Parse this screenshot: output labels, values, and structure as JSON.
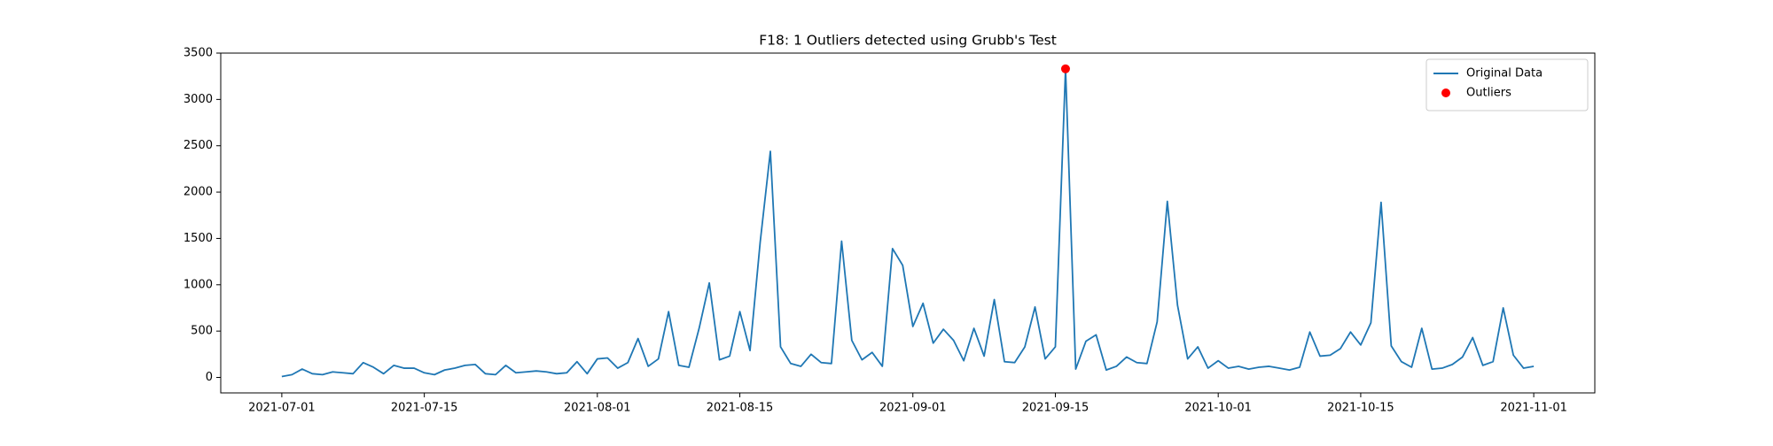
{
  "chart_data": {
    "type": "line",
    "title": "F18: 1 Outliers detected using Grubb's Test",
    "series": [
      {
        "name": "Original Data",
        "type": "line",
        "color": "#1f77b4",
        "x": [
          "2021-07-01",
          "2021-07-02",
          "2021-07-03",
          "2021-07-04",
          "2021-07-05",
          "2021-07-06",
          "2021-07-07",
          "2021-07-08",
          "2021-07-09",
          "2021-07-10",
          "2021-07-11",
          "2021-07-12",
          "2021-07-13",
          "2021-07-14",
          "2021-07-15",
          "2021-07-16",
          "2021-07-17",
          "2021-07-18",
          "2021-07-19",
          "2021-07-20",
          "2021-07-21",
          "2021-07-22",
          "2021-07-23",
          "2021-07-24",
          "2021-07-25",
          "2021-07-26",
          "2021-07-27",
          "2021-07-28",
          "2021-07-29",
          "2021-07-30",
          "2021-07-31",
          "2021-08-01",
          "2021-08-02",
          "2021-08-03",
          "2021-08-04",
          "2021-08-05",
          "2021-08-06",
          "2021-08-07",
          "2021-08-08",
          "2021-08-09",
          "2021-08-10",
          "2021-08-11",
          "2021-08-12",
          "2021-08-13",
          "2021-08-14",
          "2021-08-15",
          "2021-08-16",
          "2021-08-17",
          "2021-08-18",
          "2021-08-19",
          "2021-08-20",
          "2021-08-21",
          "2021-08-22",
          "2021-08-23",
          "2021-08-24",
          "2021-08-25",
          "2021-08-26",
          "2021-08-27",
          "2021-08-28",
          "2021-08-29",
          "2021-08-30",
          "2021-08-31",
          "2021-09-01",
          "2021-09-02",
          "2021-09-03",
          "2021-09-04",
          "2021-09-05",
          "2021-09-06",
          "2021-09-07",
          "2021-09-08",
          "2021-09-09",
          "2021-09-10",
          "2021-09-11",
          "2021-09-12",
          "2021-09-13",
          "2021-09-14",
          "2021-09-15",
          "2021-09-16",
          "2021-09-17",
          "2021-09-18",
          "2021-09-19",
          "2021-09-20",
          "2021-09-21",
          "2021-09-22",
          "2021-09-23",
          "2021-09-24",
          "2021-09-25",
          "2021-09-26",
          "2021-09-27",
          "2021-09-28",
          "2021-09-29",
          "2021-09-30",
          "2021-10-01",
          "2021-10-02",
          "2021-10-03",
          "2021-10-04",
          "2021-10-05",
          "2021-10-06",
          "2021-10-07",
          "2021-10-08",
          "2021-10-09",
          "2021-10-10",
          "2021-10-11",
          "2021-10-12",
          "2021-10-13",
          "2021-10-14",
          "2021-10-15",
          "2021-10-16",
          "2021-10-17",
          "2021-10-18",
          "2021-10-19",
          "2021-10-20",
          "2021-10-21",
          "2021-10-22",
          "2021-10-23",
          "2021-10-24",
          "2021-10-25",
          "2021-10-26",
          "2021-10-27",
          "2021-10-28",
          "2021-10-29",
          "2021-10-30",
          "2021-10-31",
          "2021-11-01"
        ],
        "values": [
          10,
          30,
          90,
          40,
          30,
          60,
          50,
          40,
          160,
          110,
          40,
          130,
          100,
          100,
          50,
          30,
          80,
          100,
          130,
          140,
          40,
          30,
          130,
          50,
          60,
          70,
          60,
          40,
          50,
          170,
          40,
          200,
          210,
          100,
          160,
          420,
          120,
          200,
          710,
          130,
          110,
          530,
          1020,
          190,
          230,
          710,
          290,
          1460,
          2440,
          330,
          150,
          120,
          250,
          160,
          150,
          1470,
          400,
          190,
          270,
          120,
          1390,
          1210,
          550,
          800,
          370,
          520,
          400,
          180,
          530,
          230,
          840,
          170,
          160,
          330,
          760,
          200,
          330,
          3330,
          90,
          390,
          460,
          80,
          120,
          220,
          160,
          150,
          600,
          1900,
          780,
          200,
          330,
          100,
          180,
          100,
          120,
          90,
          110,
          120,
          100,
          80,
          110,
          490,
          230,
          240,
          310,
          490,
          350,
          590,
          1890,
          340,
          170,
          110,
          530,
          90,
          100,
          140,
          220,
          430,
          130,
          170,
          750,
          240,
          100,
          120
        ]
      },
      {
        "name": "Outliers",
        "type": "scatter",
        "color": "#ff0000",
        "x": [
          "2021-09-16"
        ],
        "values": [
          3330
        ]
      }
    ],
    "xlim": [
      "2021-06-25",
      "2021-11-07"
    ],
    "xticks": [
      "2021-07-01",
      "2021-07-15",
      "2021-08-01",
      "2021-08-15",
      "2021-09-01",
      "2021-09-15",
      "2021-10-01",
      "2021-10-15",
      "2021-11-01"
    ],
    "ylim": [
      -167,
      3500
    ],
    "yticks": [
      0,
      500,
      1000,
      1500,
      2000,
      2500,
      3000,
      3500
    ],
    "legend": "upper right"
  }
}
